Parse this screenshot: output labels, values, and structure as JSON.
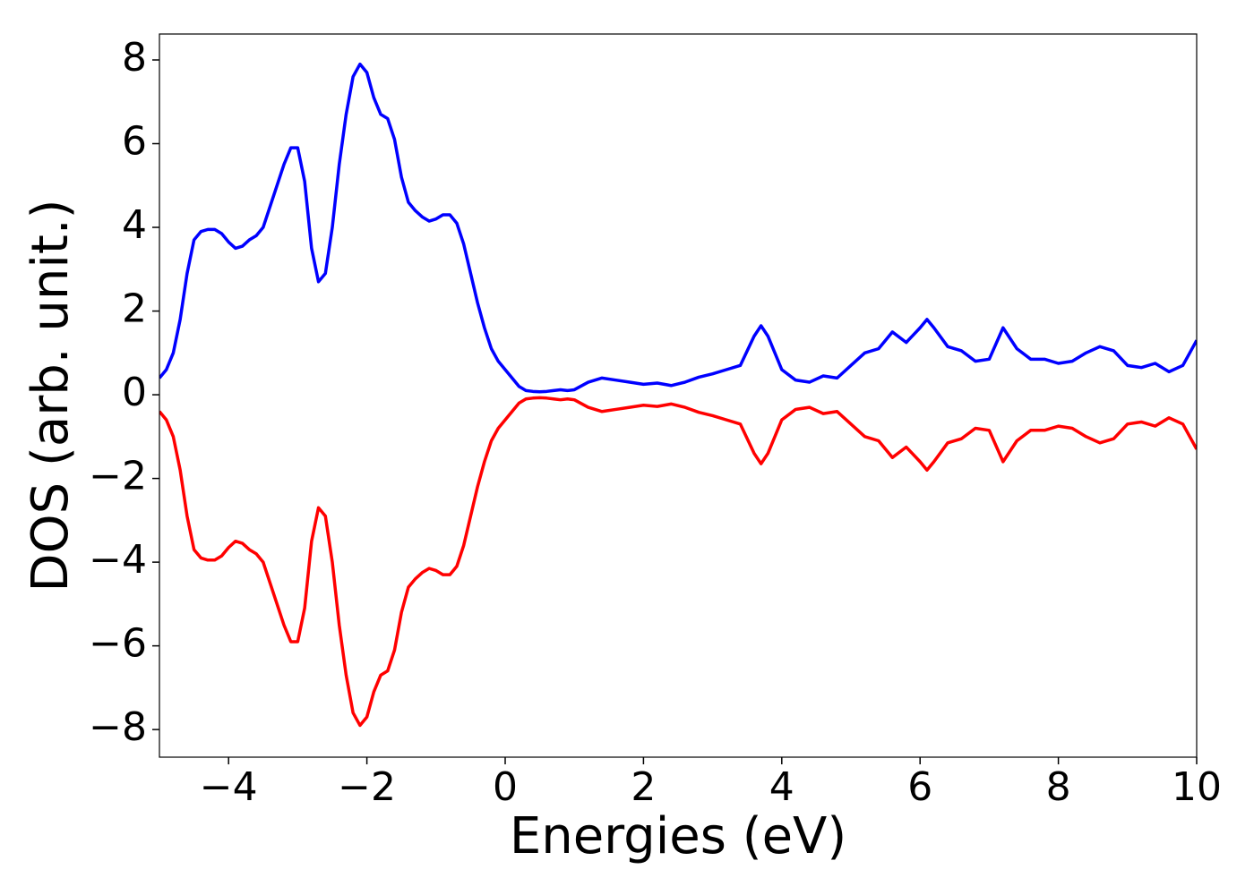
{
  "chart_data": {
    "type": "line",
    "xlabel": "Energies (eV)",
    "ylabel": "DOS (arb. unit.)",
    "x": [
      -5,
      -4.9,
      -4.8,
      -4.7,
      -4.6,
      -4.5,
      -4.4,
      -4.3,
      -4.2,
      -4.1,
      -4,
      -3.9,
      -3.8,
      -3.7,
      -3.6,
      -3.5,
      -3.4,
      -3.3,
      -3.2,
      -3.1,
      -3,
      -2.9,
      -2.8,
      -2.7,
      -2.6,
      -2.5,
      -2.4,
      -2.3,
      -2.2,
      -2.1,
      -2,
      -1.9,
      -1.8,
      -1.7,
      -1.6,
      -1.5,
      -1.4,
      -1.3,
      -1.2,
      -1.1,
      -1,
      -0.9,
      -0.8,
      -0.7,
      -0.6,
      -0.5,
      -0.4,
      -0.3,
      -0.2,
      -0.1,
      0,
      0.1,
      0.2,
      0.3,
      0.4,
      0.5,
      0.6,
      0.7,
      0.8,
      0.9,
      1,
      1.2,
      1.4,
      1.6,
      1.8,
      2,
      2.2,
      2.4,
      2.6,
      2.8,
      3,
      3.2,
      3.4,
      3.6,
      3.7,
      3.8,
      4,
      4.2,
      4.4,
      4.6,
      4.8,
      5,
      5.2,
      5.4,
      5.6,
      5.8,
      6,
      6.1,
      6.2,
      6.4,
      6.6,
      6.8,
      7,
      7.2,
      7.4,
      7.6,
      7.8,
      8,
      8.2,
      8.4,
      8.6,
      8.8,
      9,
      9.2,
      9.4,
      9.6,
      9.8,
      10
    ],
    "series": [
      {
        "color": "#0000ff",
        "values": [
          0.4,
          0.6,
          1.0,
          1.8,
          2.9,
          3.7,
          3.9,
          3.95,
          3.95,
          3.85,
          3.65,
          3.5,
          3.55,
          3.7,
          3.8,
          4.0,
          4.5,
          5.0,
          5.5,
          5.9,
          5.9,
          5.1,
          3.5,
          2.7,
          2.9,
          4.0,
          5.5,
          6.7,
          7.6,
          7.9,
          7.7,
          7.1,
          6.7,
          6.6,
          6.1,
          5.2,
          4.6,
          4.4,
          4.25,
          4.15,
          4.2,
          4.3,
          4.3,
          4.1,
          3.6,
          2.9,
          2.2,
          1.6,
          1.1,
          0.8,
          0.6,
          0.4,
          0.2,
          0.1,
          0.08,
          0.07,
          0.08,
          0.1,
          0.12,
          0.1,
          0.12,
          0.3,
          0.4,
          0.35,
          0.3,
          0.25,
          0.28,
          0.22,
          0.3,
          0.42,
          0.5,
          0.6,
          0.7,
          1.4,
          1.65,
          1.4,
          0.6,
          0.35,
          0.3,
          0.45,
          0.4,
          0.7,
          1.0,
          1.1,
          1.5,
          1.25,
          1.6,
          1.8,
          1.6,
          1.15,
          1.05,
          0.8,
          0.85,
          1.6,
          1.1,
          0.85,
          0.85,
          0.75,
          0.8,
          1.0,
          1.15,
          1.05,
          0.7,
          0.65,
          0.75,
          0.55,
          0.7,
          1.3
        ]
      },
      {
        "color": "#ff0000",
        "values": [
          -0.4,
          -0.6,
          -1.0,
          -1.8,
          -2.9,
          -3.7,
          -3.9,
          -3.95,
          -3.95,
          -3.85,
          -3.65,
          -3.5,
          -3.55,
          -3.7,
          -3.8,
          -4.0,
          -4.5,
          -5.0,
          -5.5,
          -5.9,
          -5.9,
          -5.1,
          -3.5,
          -2.7,
          -2.9,
          -4.0,
          -5.5,
          -6.7,
          -7.6,
          -7.9,
          -7.7,
          -7.1,
          -6.7,
          -6.6,
          -6.1,
          -5.2,
          -4.6,
          -4.4,
          -4.25,
          -4.15,
          -4.2,
          -4.3,
          -4.3,
          -4.1,
          -3.6,
          -2.9,
          -2.2,
          -1.6,
          -1.1,
          -0.8,
          -0.6,
          -0.4,
          -0.2,
          -0.1,
          -0.08,
          -0.07,
          -0.08,
          -0.1,
          -0.12,
          -0.1,
          -0.12,
          -0.3,
          -0.4,
          -0.35,
          -0.3,
          -0.25,
          -0.28,
          -0.22,
          -0.3,
          -0.42,
          -0.5,
          -0.6,
          -0.7,
          -1.4,
          -1.65,
          -1.4,
          -0.6,
          -0.35,
          -0.3,
          -0.45,
          -0.4,
          -0.7,
          -1.0,
          -1.1,
          -1.5,
          -1.25,
          -1.6,
          -1.8,
          -1.6,
          -1.15,
          -1.05,
          -0.8,
          -0.85,
          -1.6,
          -1.1,
          -0.85,
          -0.85,
          -0.75,
          -0.8,
          -1.0,
          -1.15,
          -1.05,
          -0.7,
          -0.65,
          -0.75,
          -0.55,
          -0.7,
          -1.3
        ]
      }
    ],
    "xlim": [
      -5,
      10
    ],
    "xticks": [
      {
        "value": -4,
        "label": "−4"
      },
      {
        "value": -2,
        "label": "−2"
      },
      0,
      2,
      4,
      6,
      8,
      10
    ],
    "ylim": [
      -8.66,
      8.62
    ],
    "yticks": [
      {
        "value": -8,
        "label": "−8"
      },
      {
        "value": -6,
        "label": "−6"
      },
      {
        "value": -4,
        "label": "−4"
      },
      {
        "value": -2,
        "label": "−2"
      },
      0,
      2,
      4,
      6,
      8
    ],
    "grid": false
  }
}
